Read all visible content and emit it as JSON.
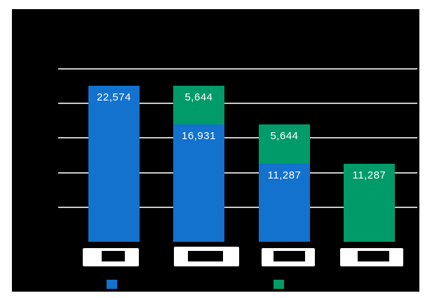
{
  "page": {
    "background": "#ffffff"
  },
  "chart_data": {
    "type": "bar",
    "stacked": true,
    "title": "",
    "x_tick_labels": [
      "",
      "",
      "",
      ""
    ],
    "x_tick_labels_redacted": true,
    "ylim": [
      0,
      25000
    ],
    "ytick_step": 5000,
    "grid": true,
    "plot_background": "#000000",
    "gridline_color": "#cacaca",
    "value_label_color": "#ffffff",
    "series": [
      {
        "name": "series-1-blue",
        "color": "#1272ce"
      },
      {
        "name": "series-2-green",
        "color": "#009b68"
      }
    ],
    "bars": [
      {
        "segments": [
          {
            "series": 0,
            "value": 22574,
            "label": "22,574"
          }
        ]
      },
      {
        "segments": [
          {
            "series": 0,
            "value": 16931,
            "label": "16,931"
          },
          {
            "series": 1,
            "value": 5644,
            "label": "5,644"
          }
        ]
      },
      {
        "segments": [
          {
            "series": 0,
            "value": 11287,
            "label": "11,287"
          },
          {
            "series": 1,
            "value": 5644,
            "label": "5,644"
          }
        ]
      },
      {
        "segments": [
          {
            "series": 1,
            "value": 11287,
            "label": "11,287"
          }
        ]
      }
    ]
  },
  "legend": {
    "swatches": [
      {
        "name": "series-1-blue",
        "color": "#1272ce"
      },
      {
        "name": "series-2-green",
        "color": "#009b68"
      }
    ]
  }
}
